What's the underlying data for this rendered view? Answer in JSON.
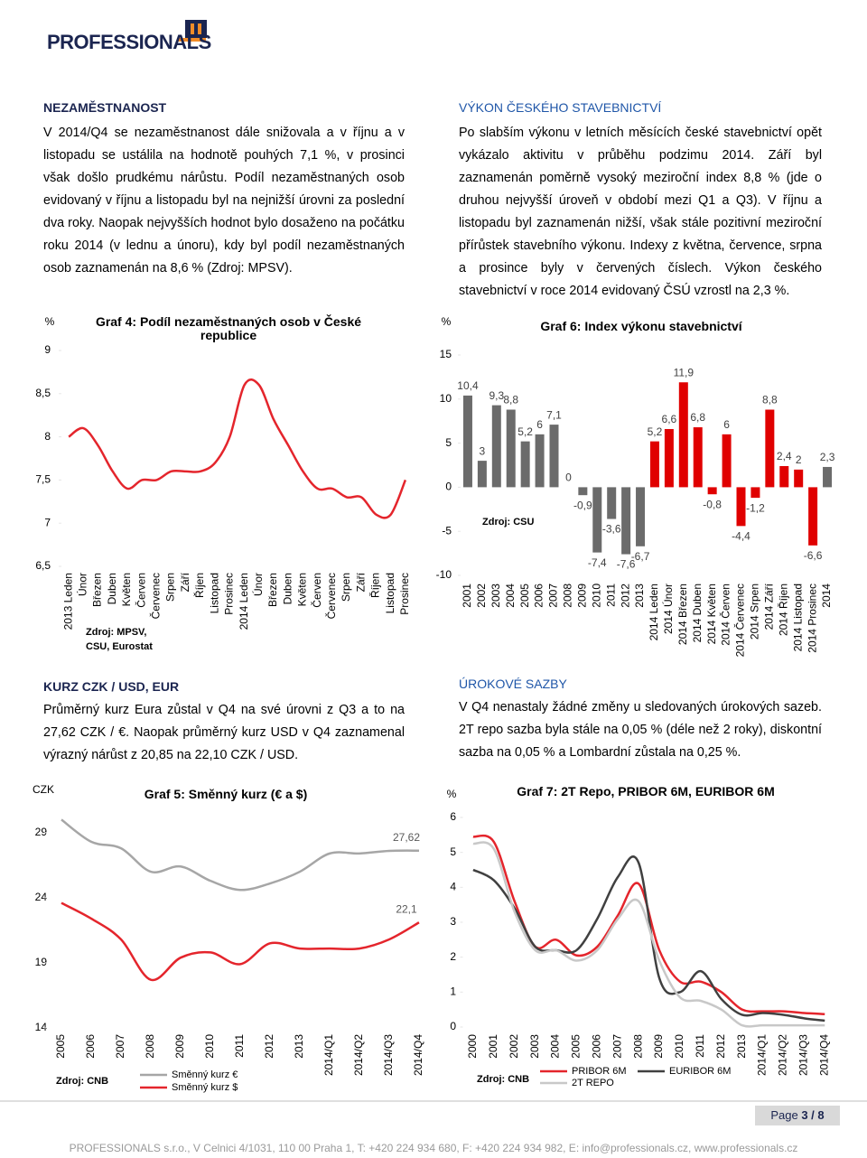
{
  "header": {
    "logo": "PROFESSIONALS"
  },
  "sections": [
    {
      "title": "NEZAMĚSTNANOST",
      "text": "V 2014/Q4 se nezaměstnanost dále snižovala a v říjnu a v listopadu se ustálila na hodnotě pouhých 7,1 %, v prosinci však došlo prudkému nárůstu. Podíl nezaměstnaných osob evidovaný v říjnu a listopadu byl na nejnižší úrovni za poslední dva roky. Naopak nejvyšších hodnot bylo dosaženo na počátku roku 2014 (v lednu a únoru), kdy byl podíl nezaměstnaných osob zaznamenán na 8,6 % (Zdroj: MPSV)."
    },
    {
      "title": "VÝKON ČESKÉHO STAVEBNICTVÍ",
      "text": "Po slabším výkonu v letních měsících české stavebnictví opět vykázalo aktivitu v průběhu podzimu 2014. Září byl zaznamenán poměrně vysoký meziroční index 8,8 % (jde o druhou nejvyšší úroveň v období mezi Q1 a Q3). V říjnu a listopadu byl zaznamenán nižší, však stále pozitivní meziroční přírůstek stavebního výkonu. Indexy z května, července, srpna a prosince byly v červených číslech. Výkon českého stavebnictví v roce 2014 evidovaný ČSÚ vzrostl na 2,3 %."
    },
    {
      "title": "KURZ CZK / USD, EUR",
      "text": "Průměrný kurz Eura zůstal v Q4 na své úrovni z Q3 a to na 27,62 CZK / €. Naopak průměrný kurz USD v Q4 zaznamenal výrazný nárůst z 20,85 na 22,10 CZK / USD."
    },
    {
      "title": "ÚROKOVÉ SAZBY",
      "text": "V Q4 nenastaly žádné změny u sledovaných úrokových sazeb. 2T repo sazba byla stále na 0,05 % (déle než 2 roky), diskontní sazba na 0,05 % a Lombardní zůstala na 0,25 %."
    }
  ],
  "chart_data": [
    {
      "type": "line",
      "title": "Graf 4: Podíl nezaměstnaných osob v České republice",
      "y_label": "%",
      "source": "Zdroj: MPSV, CSU, Eurostat",
      "categories": [
        "2013 Leden",
        "Únor",
        "Březen",
        "Duben",
        "Květen",
        "Červen",
        "Červenec",
        "Srpen",
        "Září",
        "Říjen",
        "Listopad",
        "Prosinec",
        "2014 Leden",
        "Únor",
        "Březen",
        "Duben",
        "Květen",
        "Červen",
        "Červenec",
        "Srpen",
        "Září",
        "Říjen",
        "Listopad",
        "Prosinec"
      ],
      "values": [
        8.0,
        8.1,
        7.9,
        7.6,
        7.4,
        7.5,
        7.5,
        7.6,
        7.6,
        7.6,
        7.7,
        8.0,
        8.6,
        8.6,
        8.2,
        7.9,
        7.6,
        7.4,
        7.4,
        7.3,
        7.3,
        7.1,
        7.1,
        7.5
      ],
      "color": "#e4252c",
      "ylim": [
        6.5,
        9
      ],
      "yticks": [
        {
          "value": 6.5,
          "label": "6,5"
        },
        7,
        {
          "value": 7.5,
          "label": "7,5"
        },
        8,
        {
          "value": 8.5,
          "label": "8,5"
        },
        9
      ]
    },
    {
      "type": "bar",
      "title": "Graf 6: Index výkonu stavebnictví",
      "y_label": "%",
      "source": "Zdroj: CSU",
      "categories": [
        "2001",
        "2002",
        "2003",
        "2004",
        "2005",
        "2006",
        "2007",
        "2008",
        "2009",
        "2010",
        "2011",
        "2012",
        "2013",
        "2014 Leden",
        "2014 Únor",
        "2014 Březen",
        "2014 Duben",
        "2014 Květen",
        "2014 Červen",
        "2014 Červenec",
        "2014 Srpen",
        "2014 Září",
        "2014 Říjen",
        "2014 Listopad",
        "2014 Prosinec",
        "2014"
      ],
      "values": [
        10.4,
        3,
        9.3,
        8.8,
        5.2,
        6,
        7.1,
        0,
        -0.9,
        -7.4,
        -3.6,
        -7.6,
        -6.7,
        5.2,
        6.6,
        11.9,
        6.8,
        -0.8,
        6,
        -4.4,
        -1.2,
        8.8,
        2.4,
        2,
        -6.6,
        2.3
      ],
      "value_labels": [
        "10,4",
        "3",
        "9,3",
        "8,8",
        "5,2",
        "6",
        "7,1",
        "0",
        "-0,9",
        "-7,4",
        "-3,6",
        "-7,6",
        "-6,7",
        "5,2",
        "6,6",
        "11,9",
        "6,8",
        "-0,8",
        "6",
        "-4,4",
        "-1,2",
        "8,8",
        "2,4",
        "2",
        "-6,6",
        "2,3"
      ],
      "colors": [
        "#6b6b6b",
        "#6b6b6b",
        "#6b6b6b",
        "#6b6b6b",
        "#6b6b6b",
        "#6b6b6b",
        "#6b6b6b",
        "#6b6b6b",
        "#6b6b6b",
        "#6b6b6b",
        "#6b6b6b",
        "#6b6b6b",
        "#6b6b6b",
        "#e00000",
        "#e00000",
        "#e00000",
        "#e00000",
        "#e00000",
        "#e00000",
        "#e00000",
        "#e00000",
        "#e00000",
        "#e00000",
        "#e00000",
        "#e00000",
        "#6b6b6b"
      ],
      "ylim": [
        -10,
        15
      ],
      "yticks": [
        -10,
        -5,
        0,
        5,
        10,
        15
      ]
    },
    {
      "type": "line",
      "title": "Graf 5: Směnný kurz (€ a $)",
      "y_label": "CZK",
      "source": "Zdroj: CNB",
      "categories": [
        "2005",
        "2006",
        "2007",
        "2008",
        "2009",
        "2010",
        "2011",
        "2012",
        "2013",
        "2014/Q1",
        "2014/Q2",
        "2014/Q3",
        "2014/Q4"
      ],
      "series": [
        {
          "name": "Směnný kurz €",
          "color": "#a6a6a6",
          "values": [
            30.0,
            28.3,
            27.8,
            26.0,
            26.4,
            25.3,
            24.6,
            25.1,
            26.0,
            27.4,
            27.4,
            27.6,
            27.62
          ],
          "value_labels": [
            null,
            null,
            null,
            null,
            null,
            null,
            null,
            null,
            null,
            null,
            null,
            null,
            "27,62"
          ]
        },
        {
          "name": "Směnný kurz $",
          "color": "#e4252c",
          "values": [
            23.6,
            22.4,
            20.8,
            17.7,
            19.4,
            19.8,
            18.9,
            20.5,
            20.1,
            20.1,
            20.1,
            20.8,
            22.1
          ],
          "value_labels": [
            null,
            null,
            null,
            null,
            null,
            null,
            null,
            null,
            null,
            null,
            null,
            null,
            "22,1"
          ]
        }
      ],
      "ylim": [
        14,
        31
      ],
      "yticks": [
        14,
        19,
        24,
        29
      ]
    },
    {
      "type": "line",
      "title": "Graf 7: 2T Repo, PRIBOR 6M, EURIBOR 6M",
      "y_label": "%",
      "source": "Zdroj: CNB",
      "categories": [
        "2000",
        "2001",
        "2002",
        "2003",
        "2004",
        "2005",
        "2006",
        "2007",
        "2008",
        "2009",
        "2010",
        "2011",
        "2012",
        "2013",
        "2014/Q1",
        "2014/Q2",
        "2014/Q3",
        "2014/Q4"
      ],
      "series": [
        {
          "name": "PRIBOR 6M",
          "color": "#e4252c",
          "values": [
            5.45,
            5.3,
            3.6,
            2.3,
            2.5,
            2.05,
            2.3,
            3.2,
            4.1,
            2.2,
            1.3,
            1.3,
            1.0,
            0.5,
            0.45,
            0.45,
            0.4,
            0.37
          ]
        },
        {
          "name": "EURIBOR 6M",
          "color": "#404040",
          "values": [
            4.5,
            4.2,
            3.4,
            2.3,
            2.2,
            2.2,
            3.1,
            4.3,
            4.7,
            1.4,
            1.0,
            1.6,
            0.8,
            0.35,
            0.4,
            0.35,
            0.25,
            0.18
          ]
        },
        {
          "name": "2T REPO",
          "color": "#c8c8c8",
          "values": [
            5.25,
            5.1,
            3.3,
            2.2,
            2.2,
            1.9,
            2.2,
            3.1,
            3.6,
            1.9,
            0.85,
            0.75,
            0.5,
            0.05,
            0.05,
            0.05,
            0.05,
            0.05
          ]
        }
      ],
      "ylim": [
        0,
        6
      ],
      "yticks": [
        0,
        1,
        2,
        3,
        4,
        5,
        6
      ]
    }
  ],
  "footer": {
    "page": "Page",
    "page_number": "3 / 8",
    "address": "PROFESSIONALS s.r.o., V Celnici 4/1031, 110 00 Praha 1, T: +420 224 934 680, F: +420 224 934 982, E: info@professionals.cz, www.professionals.cz"
  }
}
